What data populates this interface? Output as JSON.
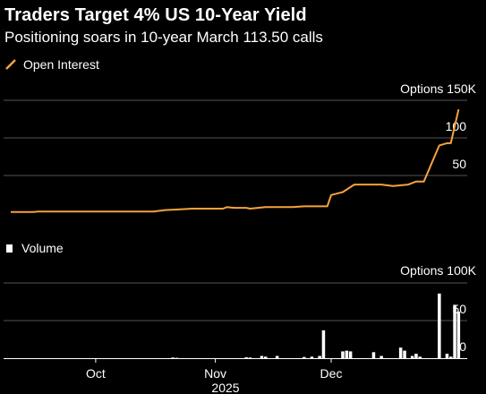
{
  "title": "Traders Target 4% US 10-Year Yield",
  "subtitle": "Positioning soars in 10-year March 113.50 calls",
  "colors": {
    "background": "#000000",
    "open_interest": "#f5a33c",
    "volume": "#ffffff",
    "grid": "#555555"
  },
  "x_axis": {
    "ticks": [
      "Oct",
      "Nov",
      "Dec"
    ],
    "year_label": "2025"
  },
  "chart_data": [
    {
      "type": "line",
      "series": [
        {
          "name": "Open Interest"
        }
      ],
      "ylabel_top": "Options 150K",
      "y_ticks": [
        "100",
        "50"
      ],
      "ylim": [
        0,
        150000
      ],
      "grid": true,
      "points": [
        [
          "2025-09-09",
          1500
        ],
        [
          "2025-09-15",
          1500
        ],
        [
          "2025-09-16",
          2000
        ],
        [
          "2025-10-01",
          2000
        ],
        [
          "2025-10-16",
          2000
        ],
        [
          "2025-10-19",
          4000
        ],
        [
          "2025-10-23",
          5000
        ],
        [
          "2025-10-26",
          6000
        ],
        [
          "2025-11-03",
          6000
        ],
        [
          "2025-11-04",
          8000
        ],
        [
          "2025-11-06",
          7000
        ],
        [
          "2025-11-09",
          7000
        ],
        [
          "2025-11-10",
          6000
        ],
        [
          "2025-11-12",
          7000
        ],
        [
          "2025-11-14",
          8000
        ],
        [
          "2025-11-21",
          8000
        ],
        [
          "2025-11-24",
          9000
        ],
        [
          "2025-11-30",
          9000
        ],
        [
          "2025-12-01",
          24000
        ],
        [
          "2025-12-04",
          28000
        ],
        [
          "2025-12-07",
          38000
        ],
        [
          "2025-12-14",
          38000
        ],
        [
          "2025-12-17",
          36000
        ],
        [
          "2025-12-21",
          38000
        ],
        [
          "2025-12-23",
          42000
        ],
        [
          "2025-12-25",
          42000
        ],
        [
          "2025-12-29",
          90000
        ],
        [
          "2025-12-31",
          93000
        ],
        [
          "2026-01-01",
          93000
        ],
        [
          "2026-01-03",
          138000
        ]
      ]
    },
    {
      "type": "bar",
      "series": [
        {
          "name": "Volume"
        }
      ],
      "ylabel_top": "Options 100K",
      "y_ticks": [
        "50",
        "0"
      ],
      "ylim": [
        0,
        100000
      ],
      "grid": true,
      "bars": [
        [
          "2025-10-21",
          800
        ],
        [
          "2025-10-22",
          500
        ],
        [
          "2025-11-09",
          1200
        ],
        [
          "2025-11-10",
          800
        ],
        [
          "2025-11-13",
          3000
        ],
        [
          "2025-11-14",
          2000
        ],
        [
          "2025-11-17",
          3000
        ],
        [
          "2025-11-24",
          1500
        ],
        [
          "2025-11-26",
          2000
        ],
        [
          "2025-11-28",
          3000
        ],
        [
          "2025-11-29",
          37000
        ],
        [
          "2025-12-04",
          9000
        ],
        [
          "2025-12-05",
          10000
        ],
        [
          "2025-12-06",
          9000
        ],
        [
          "2025-12-12",
          8000
        ],
        [
          "2025-12-14",
          3000
        ],
        [
          "2025-12-19",
          14000
        ],
        [
          "2025-12-20",
          10000
        ],
        [
          "2025-12-22",
          3000
        ],
        [
          "2025-12-23",
          6000
        ],
        [
          "2025-12-24",
          2000
        ],
        [
          "2025-12-29",
          86000
        ],
        [
          "2025-12-31",
          6000
        ],
        [
          "2026-01-01",
          2000
        ],
        [
          "2026-01-02",
          71000
        ],
        [
          "2026-01-03",
          62000
        ]
      ]
    }
  ]
}
